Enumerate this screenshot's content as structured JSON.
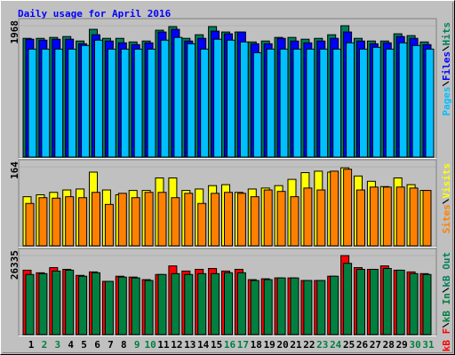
{
  "chart_data": [
    {
      "type": "bar",
      "title": "Daily usage for April 2016",
      "ylim": [
        0,
        1968
      ],
      "yticks": [
        1968
      ],
      "series": [
        {
          "name": "Pages",
          "color": "#00c0ff",
          "values": [
            1618,
            1618,
            1618,
            1618,
            1672,
            1752,
            1618,
            1618,
            1618,
            1618,
            1752,
            1793,
            1698,
            1618,
            1766,
            1752,
            1725,
            1564,
            1618,
            1618,
            1618,
            1618,
            1618,
            1618,
            1712,
            1618,
            1645,
            1618,
            1712,
            1672,
            1618
          ]
        },
        {
          "name": "Files",
          "color": "#0000ff",
          "values": [
            1766,
            1752,
            1766,
            1766,
            1698,
            1833,
            1739,
            1712,
            1685,
            1712,
            1874,
            1914,
            1739,
            1779,
            1887,
            1847,
            1874,
            1698,
            1698,
            1779,
            1739,
            1712,
            1739,
            1779,
            1874,
            1739,
            1698,
            1712,
            1806,
            1779,
            1685
          ]
        },
        {
          "name": "Hits",
          "color": "#00805c",
          "values": [
            1779,
            1779,
            1793,
            1806,
            1739,
            1914,
            1779,
            1779,
            1725,
            1739,
            1901,
            1955,
            1779,
            1833,
            1955,
            1874,
            1874,
            1725,
            1739,
            1793,
            1793,
            1766,
            1779,
            1833,
            1968,
            1779,
            1739,
            1739,
            1847,
            1820,
            1725
          ]
        }
      ]
    },
    {
      "type": "bar",
      "ylim": [
        0,
        164
      ],
      "yticks": [
        164
      ],
      "series": [
        {
          "name": "Sites",
          "color": "#ff8000",
          "values": [
            88,
            100,
            99,
            102,
            100,
            111,
            86,
            109,
            100,
            111,
            111,
            100,
            109,
            88,
            109,
            111,
            109,
            102,
            116,
            113,
            102,
            120,
            116,
            155,
            159,
            116,
            122,
            122,
            122,
            120,
            115
          ]
        },
        {
          "name": "Visits",
          "color": "#ffff00",
          "values": [
            102,
            106,
            111,
            116,
            118,
            153,
            116,
            106,
            115,
            115,
            141,
            141,
            115,
            118,
            125,
            127,
            111,
            118,
            120,
            125,
            138,
            152,
            155,
            153,
            162,
            145,
            134,
            123,
            141,
            127,
            115
          ]
        }
      ]
    },
    {
      "type": "bar",
      "ylim": [
        0,
        26335
      ],
      "yticks": [
        26335
      ],
      "categories": [
        "1",
        "2",
        "3",
        "4",
        "5",
        "6",
        "7",
        "8",
        "9",
        "10",
        "11",
        "12",
        "13",
        "14",
        "15",
        "16",
        "17",
        "18",
        "19",
        "20",
        "21",
        "22",
        "23",
        "24",
        "25",
        "26",
        "27",
        "28",
        "29",
        "30",
        "31"
      ],
      "category_colors": [
        "#000000",
        "#008040",
        "#008040",
        "#000000",
        "#000000",
        "#000000",
        "#000000",
        "#000000",
        "#008040",
        "#008040",
        "#000000",
        "#000000",
        "#000000",
        "#000000",
        "#000000",
        "#008040",
        "#008040",
        "#000000",
        "#000000",
        "#000000",
        "#000000",
        "#000000",
        "#008040",
        "#008040",
        "#000000",
        "#000000",
        "#000000",
        "#000000",
        "#000000",
        "#008040",
        "#008040"
      ],
      "series": [
        {
          "name": "kB F",
          "color": "#ff0000",
          "values": [
            21469,
            20610,
            22328,
            21755,
            19751,
            20896,
            17748,
            19465,
            19179,
            18320,
            20038,
            22900,
            21183,
            21755,
            22041,
            21183,
            21755,
            18320,
            18606,
            18893,
            18893,
            18034,
            18034,
            19465,
            26335,
            22328,
            21755,
            22900,
            21469,
            20896,
            20324
          ]
        },
        {
          "name": "kB In",
          "color": "#008040",
          "values": [
            20038,
            20324,
            21183,
            21469,
            19465,
            20610,
            17748,
            19179,
            18893,
            18034,
            20038,
            20324,
            20038,
            20324,
            20324,
            20610,
            20610,
            18034,
            18320,
            18893,
            18893,
            18034,
            18034,
            19465,
            23759,
            21755,
            21755,
            22041,
            21469,
            20324,
            20038
          ]
        },
        {
          "name": "kB Out",
          "color": "#00805c",
          "values": [
            null,
            null,
            null,
            null,
            null,
            null,
            null,
            null,
            null,
            null,
            null,
            null,
            null,
            null,
            null,
            null,
            null,
            null,
            null,
            null,
            null,
            null,
            null,
            null,
            null,
            null,
            null,
            null,
            null,
            null,
            null
          ]
        }
      ]
    }
  ]
}
